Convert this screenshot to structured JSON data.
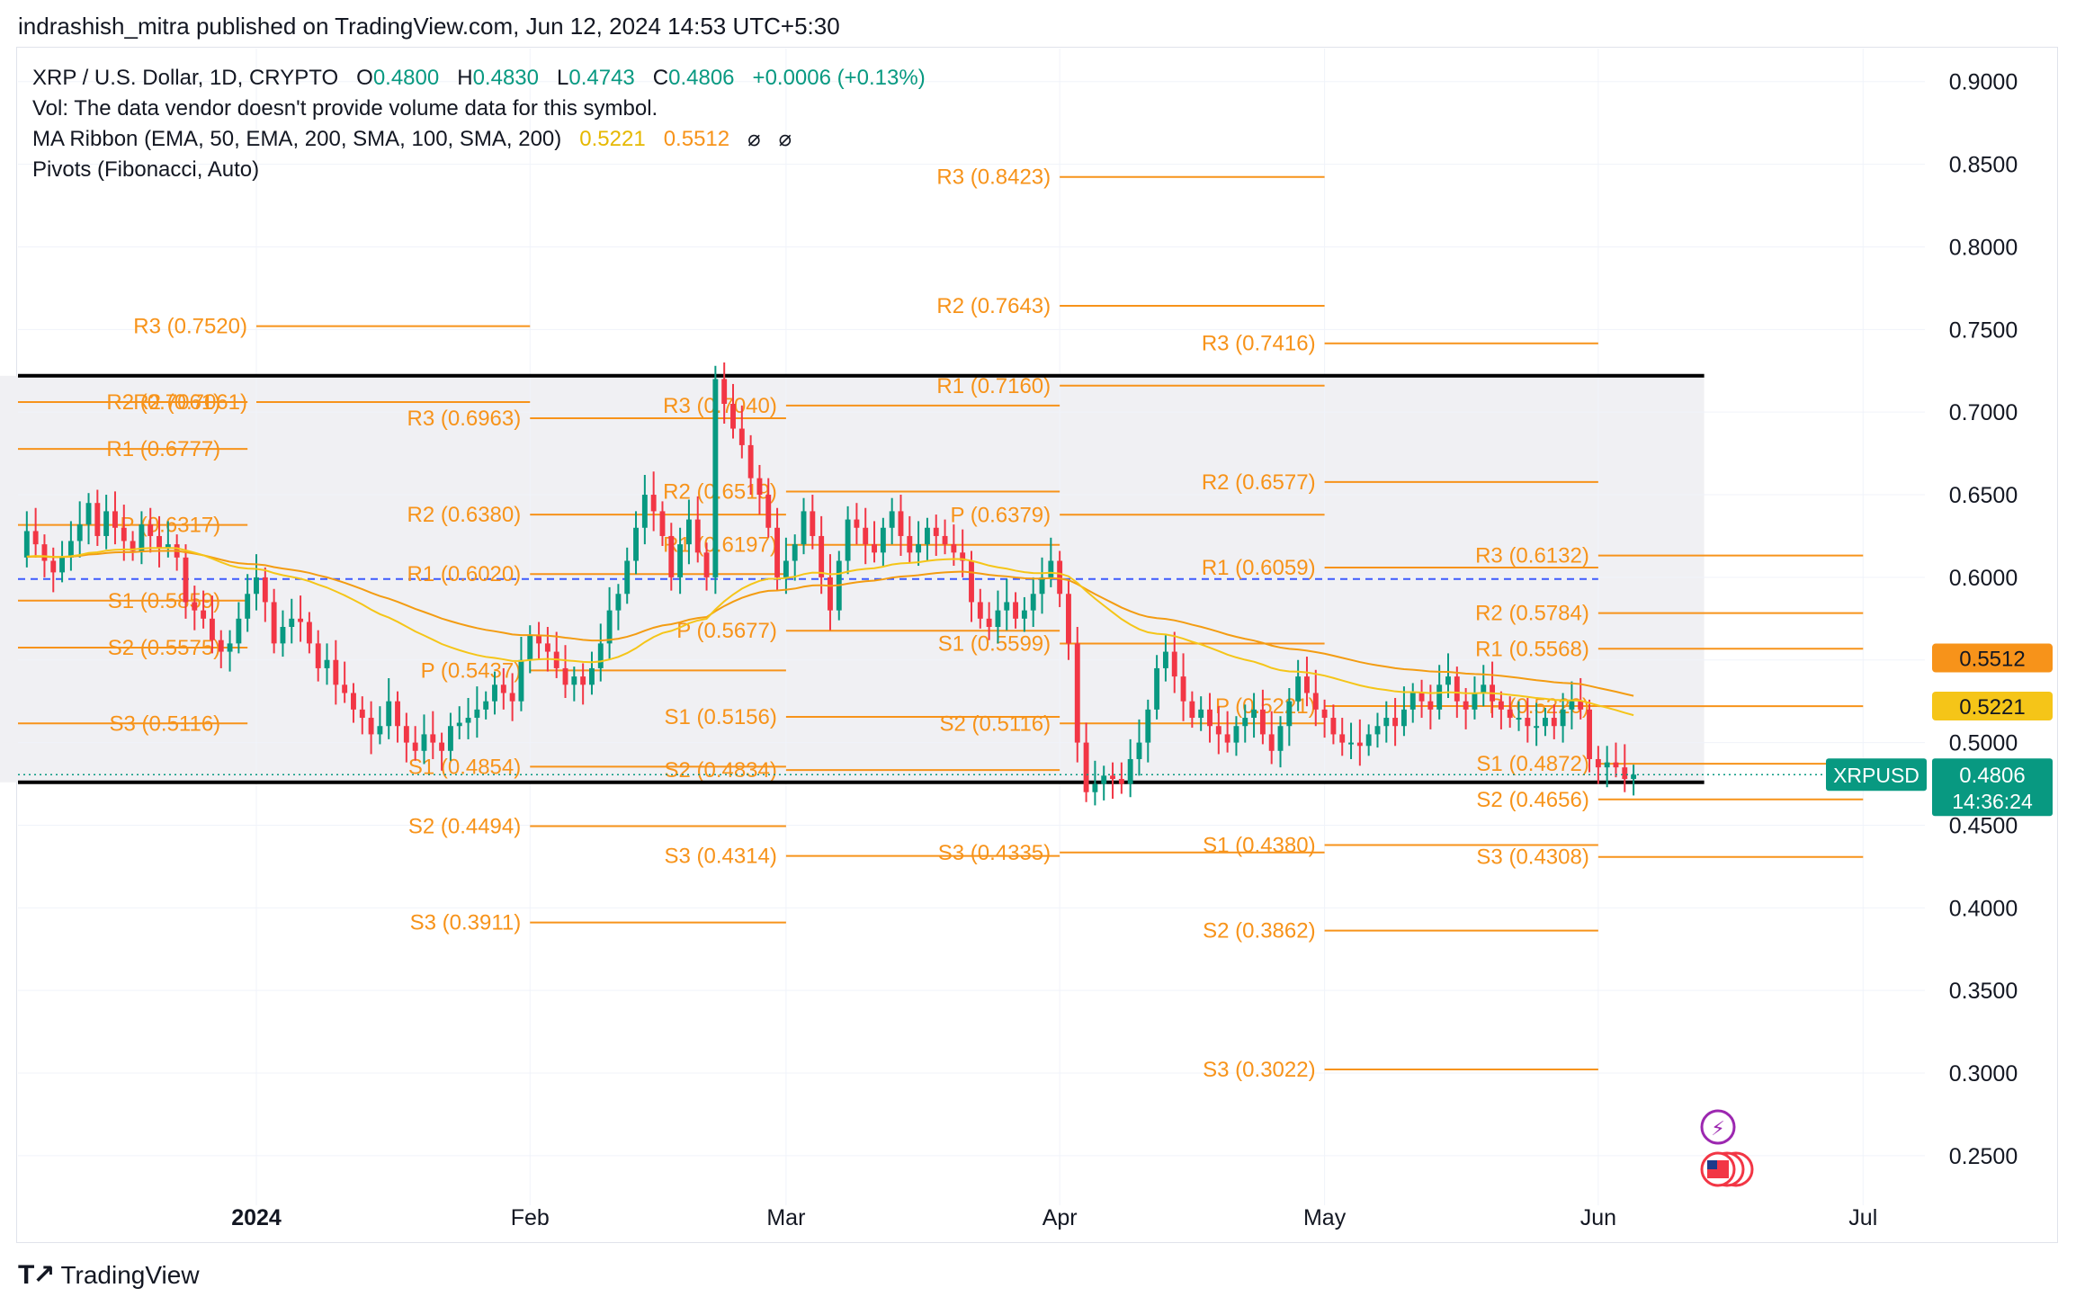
{
  "header": {
    "text": "indrashish_mitra published on TradingView.com, Jun 12, 2024 14:53 UTC+5:30"
  },
  "legend": {
    "symbol": "XRP / U.S. Dollar, 1D, CRYPTO",
    "o_label": "O",
    "o": "0.4800",
    "h_label": "H",
    "h": "0.4830",
    "l_label": "L",
    "l": "0.4743",
    "c_label": "C",
    "c": "0.4806",
    "change": "+0.0006 (+0.13%)",
    "vol": "Vol: The data vendor doesn't provide volume data for this symbol.",
    "ma_label": "MA Ribbon (EMA, 50, EMA, 200, SMA, 100, SMA, 200)",
    "ma1": "0.5221",
    "ma2": "0.5512",
    "ma3": "⌀",
    "ma4": "⌀",
    "pivots": "Pivots (Fibonacci, Auto)"
  },
  "footer": {
    "brand": "TradingView"
  },
  "colors": {
    "up": "#089981",
    "down": "#f23645",
    "pivot": "#f7931a",
    "ema50": "#f5c518",
    "ema200": "#f39c12",
    "box": "#f0f0f3",
    "accent_green": "#089981"
  },
  "chart_data": {
    "type": "candlestick",
    "ylim": [
      0.22,
      0.92
    ],
    "y_ticks": [
      "0.9000",
      "0.8500",
      "0.8000",
      "0.7500",
      "0.7000",
      "0.6500",
      "0.6000",
      "0.5500",
      "0.5000",
      "0.4500",
      "0.4000",
      "0.3500",
      "0.3000",
      "0.2500"
    ],
    "x_ticks": [
      {
        "label": "2024",
        "day": 0,
        "bold": true
      },
      {
        "label": "Feb",
        "day": 31
      },
      {
        "label": "Mar",
        "day": 60
      },
      {
        "label": "Apr",
        "day": 91
      },
      {
        "label": "May",
        "day": 121
      },
      {
        "label": "Jun",
        "day": 152
      },
      {
        "label": "Jul",
        "day": 182
      }
    ],
    "xlim_days": [
      -27,
      189
    ],
    "candles_close": [
      0.632,
      0.65,
      0.672,
      0.658,
      0.64,
      0.618,
      0.625,
      0.612,
      0.628,
      0.62,
      0.61,
      0.603,
      0.612,
      0.622,
      0.632,
      0.645,
      0.625,
      0.64,
      0.63,
      0.622,
      0.616,
      0.632,
      0.625,
      0.618,
      0.62,
      0.612,
      0.585,
      0.58,
      0.575,
      0.562,
      0.555,
      0.56,
      0.575,
      0.59,
      0.6,
      0.585,
      0.56,
      0.57,
      0.575,
      0.573,
      0.56,
      0.545,
      0.55,
      0.535,
      0.53,
      0.52,
      0.515,
      0.505,
      0.51,
      0.525,
      0.51,
      0.5,
      0.495,
      0.505,
      0.5,
      0.495,
      0.51,
      0.512,
      0.515,
      0.52,
      0.525,
      0.535,
      0.53,
      0.525,
      0.55,
      0.565,
      0.56,
      0.555,
      0.545,
      0.535,
      0.54,
      0.535,
      0.545,
      0.56,
      0.58,
      0.59,
      0.61,
      0.63,
      0.65,
      0.64,
      0.625,
      0.6,
      0.62,
      0.635,
      0.615,
      0.6,
      0.72,
      0.705,
      0.69,
      0.68,
      0.66,
      0.65,
      0.63,
      0.6,
      0.61,
      0.62,
      0.64,
      0.625,
      0.6,
      0.58,
      0.61,
      0.635,
      0.63,
      0.62,
      0.615,
      0.63,
      0.64,
      0.625,
      0.615,
      0.62,
      0.63,
      0.625,
      0.62,
      0.615,
      0.61,
      0.585,
      0.575,
      0.57,
      0.58,
      0.585,
      0.575,
      0.58,
      0.59,
      0.6,
      0.61,
      0.59,
      0.56,
      0.5,
      0.47,
      0.475,
      0.48,
      0.478,
      0.475,
      0.49,
      0.5,
      0.52,
      0.545,
      0.555,
      0.54,
      0.525,
      0.515,
      0.52,
      0.51,
      0.505,
      0.5,
      0.51,
      0.515,
      0.52,
      0.505,
      0.495,
      0.51,
      0.525,
      0.54,
      0.53,
      0.52,
      0.515,
      0.505,
      0.5,
      0.5,
      0.498,
      0.505,
      0.51,
      0.515,
      0.51,
      0.52,
      0.53,
      0.525,
      0.52,
      0.535,
      0.54,
      0.525,
      0.52,
      0.53,
      0.535,
      0.525,
      0.52,
      0.515,
      0.515,
      0.51,
      0.51,
      0.515,
      0.51,
      0.52,
      0.525,
      0.52,
      0.49,
      0.485,
      0.488,
      0.485,
      0.478,
      0.4806
    ],
    "candles_start_day": -34,
    "pivot_groups": [
      {
        "x0": -40,
        "x1": -1,
        "label_side": "left",
        "levels": [
          {
            "name": "R2",
            "label": "R2 (0.7061)",
            "v": 0.7061
          },
          {
            "name": "R1",
            "label": "R1 (0.6777)",
            "v": 0.6777
          },
          {
            "name": "P",
            "label": "P (0.6317)",
            "v": 0.6317
          },
          {
            "name": "S1",
            "label": "S1 (0.5859)",
            "v": 0.5859
          },
          {
            "name": "S2",
            "label": "S2 (0.5575)",
            "v": 0.5575
          },
          {
            "name": "S3",
            "label": "S3 (0.5116)",
            "v": 0.5116
          }
        ]
      },
      {
        "x0": 0,
        "x1": 31,
        "levels": [
          {
            "name": "R3",
            "label": "R3 (0.7520)",
            "v": 0.752
          },
          {
            "name": "R2",
            "label": "R2 (0.7061)",
            "v": 0.7061
          }
        ]
      },
      {
        "x0": 31,
        "x1": 60,
        "levels": [
          {
            "name": "R3",
            "label": "R3 (0.6963)",
            "v": 0.6963
          },
          {
            "name": "R2",
            "label": "R2 (0.6380)",
            "v": 0.638
          },
          {
            "name": "R1",
            "label": "R1 (0.6020)",
            "v": 0.602
          },
          {
            "name": "P",
            "label": "P (0.5437)",
            "v": 0.5437
          },
          {
            "name": "S1",
            "label": "S1 (0.4854)",
            "v": 0.4854
          },
          {
            "name": "S2",
            "label": "S2 (0.4494)",
            "v": 0.4494
          },
          {
            "name": "S3",
            "label": "S3 (0.3911)",
            "v": 0.3911
          }
        ]
      },
      {
        "x0": 60,
        "x1": 91,
        "levels": [
          {
            "name": "R3",
            "label": "R3 (0.7040)",
            "v": 0.704
          },
          {
            "name": "R2",
            "label": "R2 (0.6519)",
            "v": 0.6519
          },
          {
            "name": "R1",
            "label": "R1 (0.6197)",
            "v": 0.6197
          },
          {
            "name": "P",
            "label": "P (0.5677)",
            "v": 0.5677
          },
          {
            "name": "S1",
            "label": "S1 (0.5156)",
            "v": 0.5156
          },
          {
            "name": "S2",
            "label": "S2 (0.4834)",
            "v": 0.4834
          },
          {
            "name": "S3",
            "label": "S3 (0.4314)",
            "v": 0.4314
          }
        ]
      },
      {
        "x0": 91,
        "x1": 121,
        "levels": [
          {
            "name": "R3",
            "label": "R3 (0.8423)",
            "v": 0.8423
          },
          {
            "name": "R2",
            "label": "R2 (0.7643)",
            "v": 0.7643
          },
          {
            "name": "R1",
            "label": "R1 (0.7160)",
            "v": 0.716
          },
          {
            "name": "P",
            "label": "P (0.6379)",
            "v": 0.6379
          },
          {
            "name": "S1",
            "label": "S1 (0.5599)",
            "v": 0.5599
          },
          {
            "name": "S2",
            "label": "S2 (0.5116)",
            "v": 0.5116
          },
          {
            "name": "S3",
            "label": "S3 (0.4335)",
            "v": 0.4335
          }
        ]
      },
      {
        "x0": 121,
        "x1": 152,
        "levels": [
          {
            "name": "R3",
            "label": "R3 (0.7416)",
            "v": 0.7416
          },
          {
            "name": "R2",
            "label": "R2 (0.6577)",
            "v": 0.6577
          },
          {
            "name": "R1",
            "label": "R1 (0.6059)",
            "v": 0.6059
          },
          {
            "name": "P",
            "label": "P (0.5221)",
            "v": 0.5221
          },
          {
            "name": "S1",
            "label": "S1 (0.4380)",
            "v": 0.438
          },
          {
            "name": "S2",
            "label": "S2 (0.3862)",
            "v": 0.3862
          },
          {
            "name": "S3",
            "label": "S3 (0.3022)",
            "v": 0.3022
          }
        ]
      },
      {
        "x0": 152,
        "x1": 182,
        "levels": [
          {
            "name": "R3",
            "label": "R3 (0.6132)",
            "v": 0.6132
          },
          {
            "name": "R2",
            "label": "R2 (0.5784)",
            "v": 0.5784
          },
          {
            "name": "R1",
            "label": "R1 (0.5568)",
            "v": 0.5568
          },
          {
            "name": "P",
            "label": "P (0.5220)",
            "v": 0.522
          },
          {
            "name": "S1",
            "label": "S1 (0.4872)",
            "v": 0.4872
          },
          {
            "name": "S2",
            "label": "S2 (0.4656)",
            "v": 0.4656
          },
          {
            "name": "S3",
            "label": "S3 (0.4308)",
            "v": 0.4308
          }
        ]
      }
    ],
    "range_box": {
      "top": 0.722,
      "bottom": 0.476,
      "x0": -40,
      "x1": 164
    },
    "dashed_level": 0.599,
    "current_price_line": 0.4806,
    "price_tags": [
      {
        "label": "0.5512",
        "v": 0.5512,
        "color": "#f7931a",
        "text_color": "#131722"
      },
      {
        "label": "0.5221",
        "v": 0.5221,
        "color": "#f5c518",
        "text_color": "#131722"
      }
    ],
    "current_tag": {
      "symbol": "XRPUSD",
      "price": "0.4806",
      "countdown": "14:36:24"
    }
  }
}
